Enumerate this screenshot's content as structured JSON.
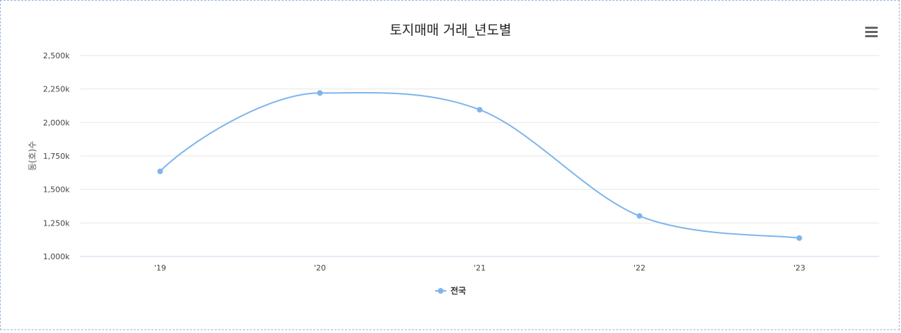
{
  "chart_data": {
    "type": "line",
    "title": "토지매매 거래_년도별",
    "ylabel": "동(호)수",
    "xlabel": "",
    "categories": [
      "'19",
      "'20",
      "'21",
      "'22",
      "'23"
    ],
    "series": [
      {
        "name": "전국",
        "values": [
          1635000,
          2220000,
          2095000,
          1302000,
          1137000
        ],
        "color": "#7cb5ec"
      }
    ],
    "ylim": [
      1000000,
      2500000
    ],
    "yticks": [
      {
        "value": 1000000,
        "label": "1,000k"
      },
      {
        "value": 1250000,
        "label": "1,250k"
      },
      {
        "value": 1500000,
        "label": "1,500k"
      },
      {
        "value": 1750000,
        "label": "1,750k"
      },
      {
        "value": 2000000,
        "label": "2,000k"
      },
      {
        "value": 2250000,
        "label": "2,250k"
      },
      {
        "value": 2500000,
        "label": "2,500k"
      }
    ],
    "grid": true,
    "legend_position": "bottom-center",
    "smooth": true
  },
  "menu": {
    "icon": "hamburger-menu-icon"
  }
}
